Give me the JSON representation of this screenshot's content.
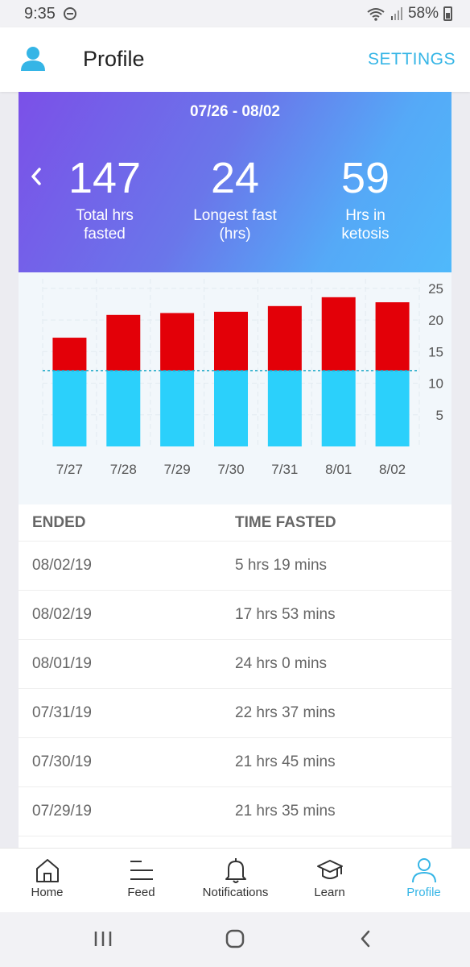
{
  "status_bar": {
    "time": "9:35",
    "battery": "58%"
  },
  "header": {
    "title": "Profile",
    "settings_label": "SETTINGS"
  },
  "summary": {
    "date_range": "07/26 - 08/02",
    "stats": [
      {
        "value": "147",
        "label_line1": "Total hrs",
        "label_line2": "fasted"
      },
      {
        "value": "24",
        "label_line1": "Longest fast",
        "label_line2": "(hrs)"
      },
      {
        "value": "59",
        "label_line1": "Hrs in",
        "label_line2": "ketosis"
      }
    ]
  },
  "chart_data": {
    "type": "bar",
    "stacked": true,
    "categories": [
      "7/27",
      "7/28",
      "7/29",
      "7/30",
      "7/31",
      "8/01",
      "8/02"
    ],
    "series": [
      {
        "values": [
          12,
          12,
          12,
          12,
          12,
          12,
          12
        ],
        "color": "#2bd0fb"
      },
      {
        "values": [
          5.2,
          8.8,
          9.1,
          9.3,
          10.2,
          11.6,
          10.8
        ],
        "color": "#e30008"
      }
    ],
    "ylim": [
      0,
      26
    ],
    "yticks": [
      5,
      10,
      15,
      20,
      25
    ],
    "reference_line": 12,
    "grid": true
  },
  "table": {
    "columns": [
      "ENDED",
      "TIME FASTED"
    ],
    "rows": [
      {
        "ended": "08/02/19",
        "time_fasted": "5 hrs 19 mins"
      },
      {
        "ended": "08/02/19",
        "time_fasted": "17 hrs 53 mins"
      },
      {
        "ended": "08/01/19",
        "time_fasted": "24 hrs 0 mins"
      },
      {
        "ended": "07/31/19",
        "time_fasted": "22 hrs 37 mins"
      },
      {
        "ended": "07/30/19",
        "time_fasted": "21 hrs 45 mins"
      },
      {
        "ended": "07/29/19",
        "time_fasted": "21 hrs 35 mins"
      }
    ]
  },
  "bottom_nav": {
    "items": [
      {
        "label": "Home",
        "icon": "home-icon"
      },
      {
        "label": "Feed",
        "icon": "feed-icon"
      },
      {
        "label": "Notifications",
        "icon": "bell-icon"
      },
      {
        "label": "Learn",
        "icon": "graduation-cap-icon"
      },
      {
        "label": "Profile",
        "icon": "person-icon",
        "active": true
      }
    ]
  },
  "colors": {
    "accent": "#35b5e6",
    "fasting": "#e30008",
    "base": "#2bd0fb"
  }
}
